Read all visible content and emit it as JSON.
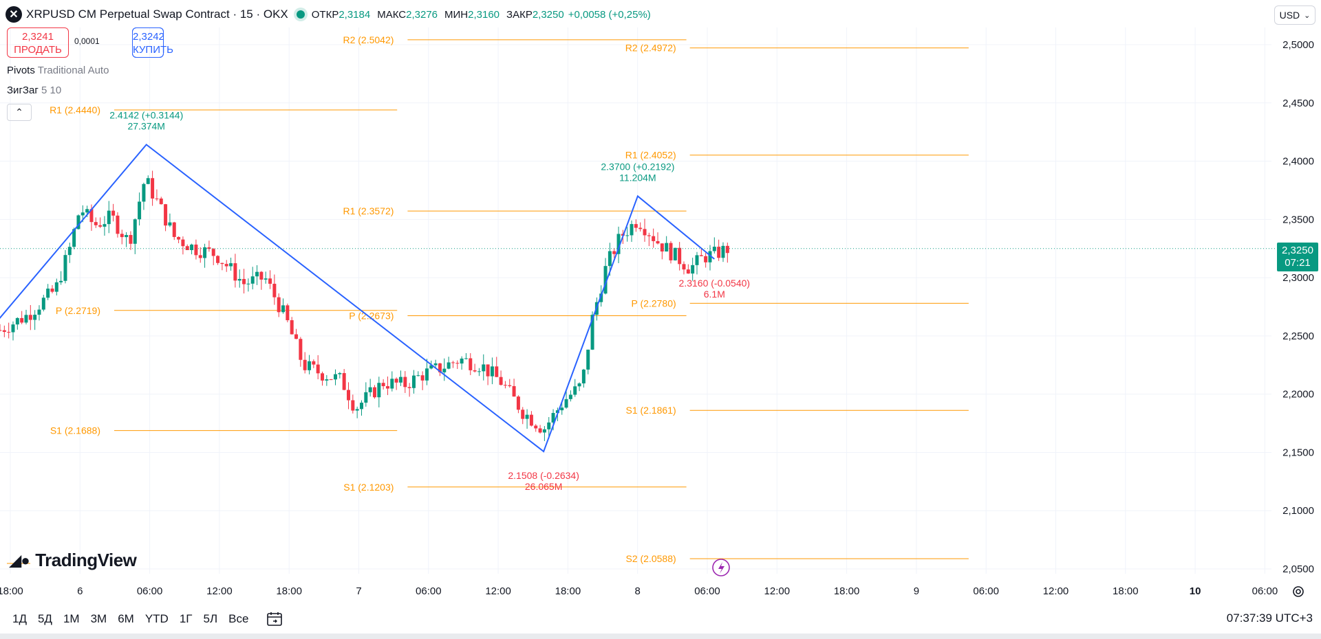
{
  "header": {
    "title": "XRPUSD CM Perpetual Swap Contract · 15 · OKX",
    "open_label": "ОТКР",
    "open": "2,3184",
    "high_label": "МАКС",
    "high": "2,3276",
    "low_label": "МИН",
    "low": "2,3160",
    "close_label": "ЗАКР",
    "close": "2,3250",
    "change": "+0,0058 (+0,25%)"
  },
  "trade": {
    "sell_price": "2,3241",
    "sell_label": "ПРОДАТЬ",
    "spread": "0,0001",
    "buy_price": "2,3242",
    "buy_label": "КУПИТЬ"
  },
  "indicators": {
    "pivots_name": "Pivots",
    "pivots_params": "Traditional Auto",
    "zigzag_name": "ЗигЗаг",
    "zigzag_params": "5 10"
  },
  "currency": "USD",
  "last_price": {
    "value": "2,3250",
    "countdown": "07:21"
  },
  "logo_text": "TradingView",
  "ranges": [
    "1Д",
    "5Д",
    "1М",
    "3М",
    "6М",
    "YTD",
    "1Г",
    "5Л",
    "Все"
  ],
  "clock": "07:37:39 UTC+3",
  "colors": {
    "up": "#089981",
    "down": "#f23645",
    "pivot": "#ff9800",
    "zigzag": "#2962ff",
    "grid": "#f0f3fa"
  },
  "chart_data": {
    "type": "candlestick",
    "yaxis_ticks": [
      "2,0500",
      "2,1000",
      "2,1500",
      "2,2000",
      "2,2500",
      "2,3000",
      "2,3500",
      "2,4000",
      "2,4500",
      "2,5000"
    ],
    "ylim": [
      2.045,
      2.52
    ],
    "xaxis_ticks": [
      "18:00",
      "6",
      "06:00",
      "12:00",
      "18:00",
      "7",
      "06:00",
      "12:00",
      "18:00",
      "8",
      "06:00",
      "12:00",
      "18:00",
      "9",
      "06:00",
      "12:00",
      "18:00",
      "10",
      "06:00"
    ],
    "xaxis_bold": [
      "10"
    ],
    "pivots": [
      {
        "period": 0,
        "levels": [
          {
            "label": "P (2.2719)",
            "value": 2.2719
          },
          {
            "label": "S1 (2.1688)",
            "value": 2.1688
          },
          {
            "label": "R1 (2.4440)",
            "value": 2.444
          }
        ]
      },
      {
        "period": 1,
        "levels": [
          {
            "label": "R2 (2.5042)",
            "value": 2.5042
          },
          {
            "label": "R1 (2.3572)",
            "value": 2.3572
          },
          {
            "label": "P (2.2673)",
            "value": 2.2673
          },
          {
            "label": "S1 (2.1203)",
            "value": 2.1203
          }
        ]
      },
      {
        "period": 2,
        "levels": [
          {
            "label": "R2 (2.4972)",
            "value": 2.4972
          },
          {
            "label": "R1 (2.4052)",
            "value": 2.4052
          },
          {
            "label": "P (2.2780)",
            "value": 2.278
          },
          {
            "label": "S1 (2.1861)",
            "value": 2.1861
          },
          {
            "label": "S2 (2.0588)",
            "value": 2.0588
          }
        ]
      }
    ],
    "zigzag": [
      {
        "t": -0.05,
        "price": 2.262
      },
      {
        "t": 2.1,
        "price": 2.4142,
        "label": "2.4142 (+0.3144)",
        "vol": "27.374M",
        "kind": "high"
      },
      {
        "t": 7.8,
        "price": 2.1508,
        "label": "2.1508 (-0.2634)",
        "vol": "26.065M",
        "kind": "low"
      },
      {
        "t": 9.15,
        "price": 2.37,
        "label": "2.3700 (+0.2192)",
        "vol": "11.204M",
        "kind": "high"
      },
      {
        "t": 10.25,
        "price": 2.316,
        "label": "2.3160 (-0.0540)",
        "vol": "6.1M",
        "kind": "low"
      }
    ],
    "price_path": [
      [
        0.0,
        2.255
      ],
      [
        0.4,
        2.268
      ],
      [
        0.8,
        2.29
      ],
      [
        1.0,
        2.325
      ],
      [
        1.15,
        2.36
      ],
      [
        1.35,
        2.345
      ],
      [
        1.6,
        2.352
      ],
      [
        1.85,
        2.33
      ],
      [
        2.08,
        2.385
      ],
      [
        2.3,
        2.36
      ],
      [
        2.5,
        2.335
      ],
      [
        2.8,
        2.325
      ],
      [
        3.1,
        2.32
      ],
      [
        3.5,
        2.295
      ],
      [
        3.8,
        2.3
      ],
      [
        4.1,
        2.265
      ],
      [
        4.35,
        2.225
      ],
      [
        4.6,
        2.218
      ],
      [
        4.9,
        2.212
      ],
      [
        5.1,
        2.188
      ],
      [
        5.5,
        2.21
      ],
      [
        5.8,
        2.208
      ],
      [
        6.1,
        2.218
      ],
      [
        6.3,
        2.222
      ],
      [
        6.6,
        2.23
      ],
      [
        6.9,
        2.225
      ],
      [
        7.2,
        2.21
      ],
      [
        7.5,
        2.185
      ],
      [
        7.8,
        2.17
      ],
      [
        8.1,
        2.195
      ],
      [
        8.35,
        2.208
      ],
      [
        8.5,
        2.265
      ],
      [
        8.7,
        2.31
      ],
      [
        8.9,
        2.335
      ],
      [
        9.15,
        2.35
      ],
      [
        9.45,
        2.33
      ],
      [
        9.7,
        2.318
      ],
      [
        9.9,
        2.308
      ],
      [
        10.1,
        2.318
      ],
      [
        10.25,
        2.32
      ],
      [
        10.45,
        2.325
      ]
    ]
  }
}
